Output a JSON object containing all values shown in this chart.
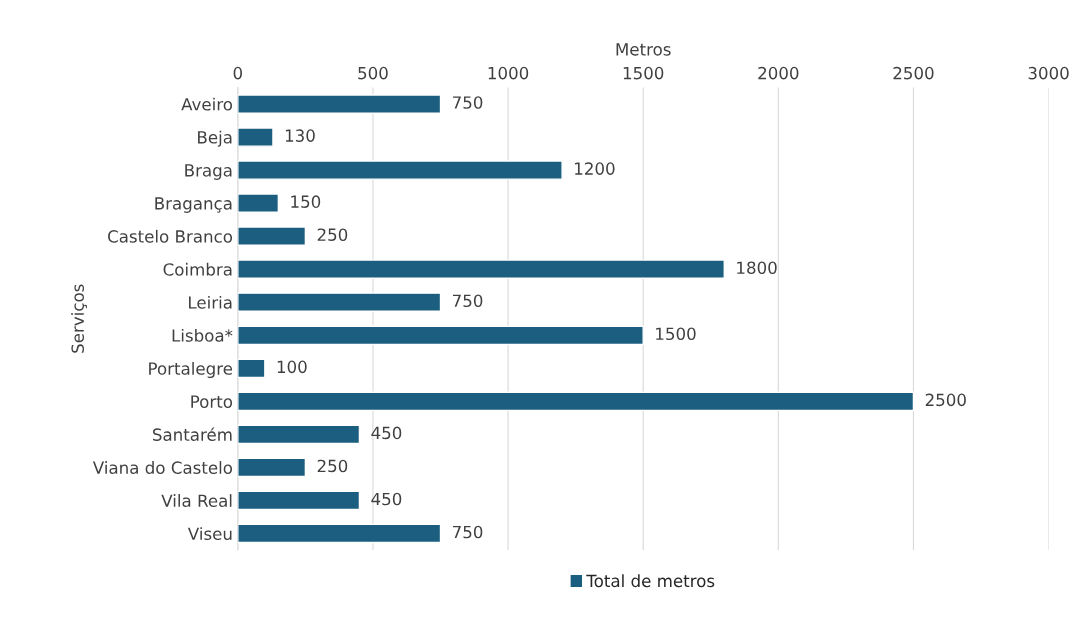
{
  "chart_data": {
    "type": "bar",
    "orientation": "horizontal",
    "xlabel": "Metros",
    "ylabel": "Serviços",
    "categories": [
      "Aveiro",
      "Beja",
      "Braga",
      "Bragança",
      "Castelo Branco",
      "Coimbra",
      "Leiria",
      "Lisboa*",
      "Portalegre",
      "Porto",
      "Santarém",
      "Viana do Castelo",
      "Vila Real",
      "Viseu"
    ],
    "series": [
      {
        "name": "Total de metros",
        "color": "#1b5e80",
        "values": [
          750,
          130,
          1200,
          150,
          250,
          1800,
          750,
          1500,
          100,
          2500,
          450,
          250,
          450,
          750
        ]
      }
    ],
    "xlim": [
      0,
      3000
    ],
    "xticks": [
      0,
      500,
      1000,
      1500,
      2000,
      2500,
      3000
    ],
    "grid": "x",
    "legend": "bottom",
    "data_labels": true
  }
}
